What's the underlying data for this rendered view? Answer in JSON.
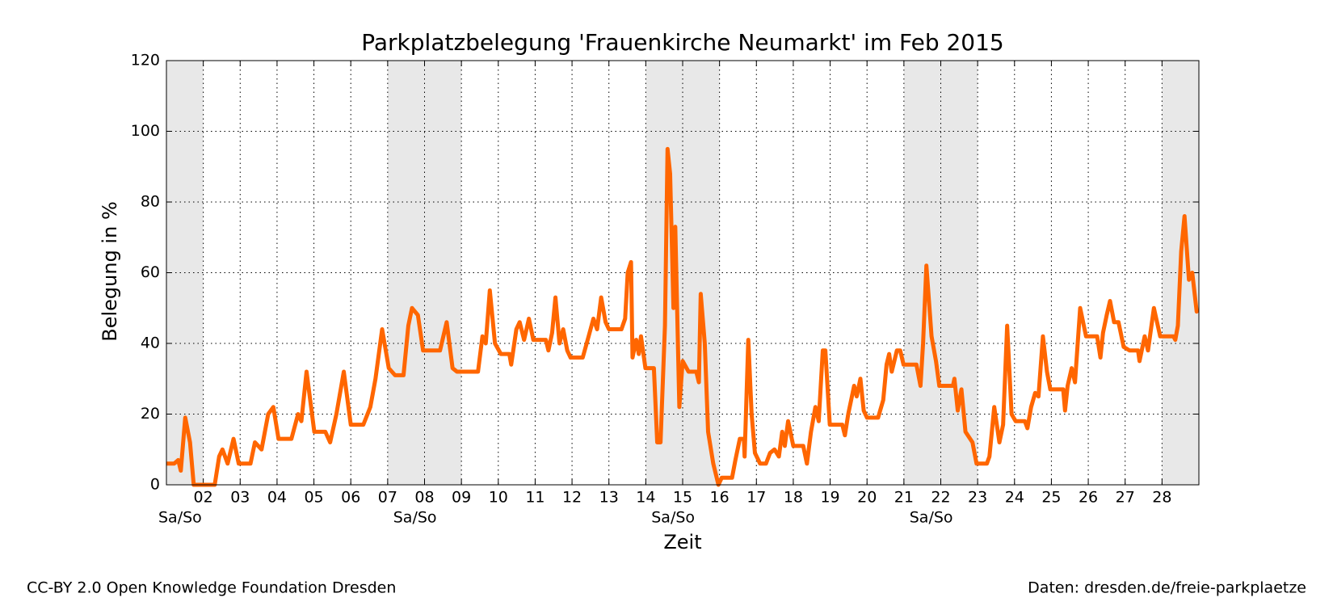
{
  "chart_data": {
    "type": "line",
    "title": "Parkplatzbelegung 'Frauenkirche Neumarkt' im Feb 2015",
    "xlabel": "Zeit",
    "ylabel": "Belegung in %",
    "xlim": [
      1,
      29
    ],
    "ylim": [
      0,
      120
    ],
    "xticks": [
      {
        "value": 2,
        "label": "02"
      },
      {
        "value": 3,
        "label": "03"
      },
      {
        "value": 4,
        "label": "04"
      },
      {
        "value": 5,
        "label": "05"
      },
      {
        "value": 6,
        "label": "06"
      },
      {
        "value": 7,
        "label": "07"
      },
      {
        "value": 8,
        "label": "08"
      },
      {
        "value": 9,
        "label": "09"
      },
      10,
      11,
      12,
      13,
      14,
      15,
      16,
      17,
      18,
      19,
      20,
      21,
      22,
      23,
      24,
      25,
      26,
      27,
      28
    ],
    "yticks": [
      0,
      20,
      40,
      60,
      80,
      100,
      120
    ],
    "grid": true,
    "weekends": [
      [
        1,
        2
      ],
      [
        7,
        9
      ],
      [
        14,
        16
      ],
      [
        21,
        23
      ],
      [
        28,
        29
      ]
    ],
    "weekend_color": "#e8e8e8",
    "weekend_labels": [
      "Sa/So",
      "Sa/So",
      "Sa/So",
      "Sa/So",
      null
    ],
    "series": [
      {
        "name": "Frauenkirche Neumarkt",
        "color": "#ff6600",
        "x": [
          1.0,
          1.21,
          1.32,
          1.39,
          1.51,
          1.64,
          1.74,
          2.31,
          2.43,
          2.52,
          2.66,
          2.82,
          2.96,
          3.28,
          3.4,
          3.58,
          3.76,
          3.9,
          4.04,
          4.39,
          4.57,
          4.66,
          4.8,
          5.01,
          5.31,
          5.44,
          5.61,
          5.81,
          6.0,
          6.34,
          6.53,
          6.67,
          6.85,
          7.03,
          7.2,
          7.43,
          7.56,
          7.66,
          7.82,
          7.96,
          8.42,
          8.6,
          8.76,
          8.88,
          9.45,
          9.57,
          9.66,
          9.77,
          9.91,
          10.07,
          10.3,
          10.35,
          10.49,
          10.58,
          10.7,
          10.83,
          10.95,
          11.29,
          11.36,
          11.46,
          11.55,
          11.66,
          11.76,
          11.87,
          11.96,
          12.29,
          12.45,
          12.58,
          12.68,
          12.79,
          12.91,
          13.0,
          13.34,
          13.44,
          13.51,
          13.6,
          13.64,
          13.74,
          13.81,
          13.87,
          13.99,
          14.22,
          14.31,
          14.4,
          14.52,
          14.59,
          14.66,
          14.75,
          14.8,
          14.91,
          15.0,
          15.16,
          15.37,
          15.44,
          15.49,
          15.6,
          15.69,
          15.83,
          15.97,
          16.06,
          16.34,
          16.43,
          16.55,
          16.66,
          16.68,
          16.78,
          16.87,
          16.96,
          17.1,
          17.26,
          17.37,
          17.49,
          17.61,
          17.7,
          17.77,
          17.86,
          18.0,
          18.27,
          18.37,
          18.48,
          18.6,
          18.69,
          18.8,
          18.87,
          18.99,
          19.33,
          19.4,
          19.49,
          19.65,
          19.72,
          19.82,
          19.91,
          20.0,
          20.3,
          20.44,
          20.53,
          20.6,
          20.67,
          20.81,
          20.9,
          20.99,
          21.34,
          21.45,
          21.52,
          21.61,
          21.68,
          21.75,
          21.87,
          21.96,
          22.33,
          22.37,
          22.46,
          22.56,
          22.67,
          22.86,
          22.97,
          23.25,
          23.32,
          23.45,
          23.59,
          23.69,
          23.8,
          23.92,
          24.03,
          24.28,
          24.35,
          24.45,
          24.56,
          24.65,
          24.77,
          24.88,
          24.97,
          25.32,
          25.37,
          25.44,
          25.55,
          25.64,
          25.78,
          25.94,
          26.24,
          26.33,
          26.4,
          26.5,
          26.59,
          26.7,
          26.82,
          26.96,
          27.12,
          27.35,
          27.39,
          27.53,
          27.62,
          27.78,
          27.95,
          28.31,
          28.36,
          28.43,
          28.52,
          28.61,
          28.73,
          28.82,
          28.94
        ],
        "values": [
          6,
          6,
          7,
          4,
          19,
          12,
          0,
          0,
          8,
          10,
          6,
          13,
          6,
          6,
          12,
          10,
          20,
          22,
          13,
          13,
          20,
          18,
          32,
          15,
          15,
          12,
          20,
          32,
          17,
          17,
          22,
          30,
          44,
          33,
          31,
          31,
          45,
          50,
          48,
          38,
          38,
          46,
          33,
          32,
          32,
          42,
          40,
          55,
          40,
          37,
          37,
          34,
          44,
          46,
          41,
          47,
          41,
          41,
          38,
          43,
          53,
          40,
          44,
          38,
          36,
          36,
          42,
          47,
          44,
          53,
          46,
          44,
          44,
          47,
          60,
          63,
          36,
          41,
          37,
          42,
          33,
          33,
          12,
          12,
          45,
          95,
          88,
          50,
          73,
          22,
          35,
          32,
          32,
          29,
          54,
          40,
          15,
          6,
          0,
          2,
          2,
          7,
          13,
          13,
          8,
          41,
          20,
          9,
          6,
          6,
          9,
          10,
          8,
          15,
          11,
          18,
          11,
          11,
          6,
          15,
          22,
          18,
          38,
          38,
          17,
          17,
          14,
          20,
          28,
          25,
          30,
          21,
          19,
          19,
          24,
          34,
          37,
          32,
          38,
          38,
          34,
          34,
          28,
          40,
          62,
          52,
          42,
          35,
          28,
          28,
          30,
          21,
          27,
          15,
          12,
          6,
          6,
          8,
          22,
          12,
          17,
          45,
          20,
          18,
          18,
          16,
          22,
          26,
          25,
          42,
          32,
          27,
          27,
          21,
          28,
          33,
          29,
          50,
          42,
          42,
          36,
          43,
          48,
          52,
          46,
          46,
          39,
          38,
          38,
          35,
          42,
          38,
          50,
          42,
          42,
          41,
          45,
          66,
          76,
          58,
          60,
          49
        ]
      }
    ]
  },
  "footer": {
    "license": "CC-BY 2.0 Open Knowledge Foundation Dresden",
    "source": "Daten: dresden.de/freie-parkplaetze"
  }
}
